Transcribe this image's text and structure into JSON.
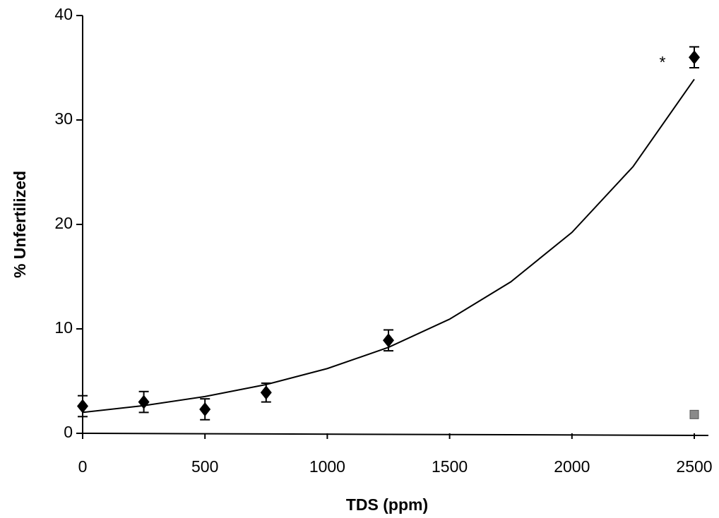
{
  "chart_data": {
    "type": "scatter",
    "xlabel": "TDS (ppm)",
    "ylabel": "% Unfertilized",
    "xlim": [
      0,
      2500
    ],
    "ylim": [
      0,
      40
    ],
    "xticks": [
      0,
      500,
      1000,
      1500,
      2000,
      2500
    ],
    "yticks": [
      0,
      10,
      20,
      30,
      40
    ],
    "annotations": [
      "*"
    ],
    "series": [
      {
        "marker": "diamond",
        "color": "#000000",
        "x": [
          0,
          250,
          500,
          750,
          1250,
          2500
        ],
        "values": [
          2.6,
          3.0,
          2.3,
          3.9,
          8.9,
          36.0
        ],
        "errors": [
          1.0,
          1.0,
          1.0,
          0.9,
          1.0,
          1.0
        ]
      },
      {
        "marker": "square",
        "color": "#8a8a8a",
        "x": [
          2500
        ],
        "values": [
          1.8
        ]
      },
      {
        "marker": "line",
        "color": "#000000",
        "x": [
          0,
          250,
          500,
          750,
          1000,
          1250,
          1500,
          1750,
          2000,
          2250,
          2500
        ],
        "values": [
          2.0,
          2.65,
          3.52,
          4.67,
          6.2,
          8.23,
          10.93,
          14.5,
          19.24,
          25.54,
          33.9
        ]
      }
    ]
  }
}
